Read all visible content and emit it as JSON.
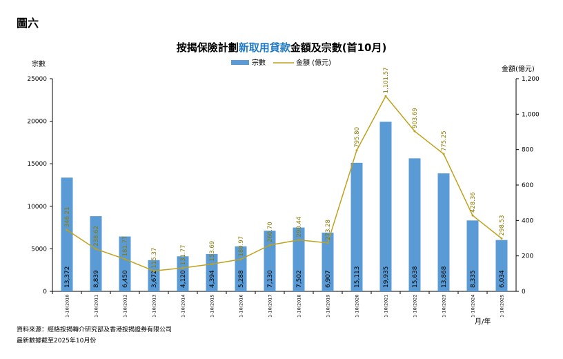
{
  "figure_label": "圖六",
  "footnotes": [
    "資料來源：經絡按揭轉介研究部及香港按揭證券有限公司",
    "最新數據截至2025年10月份"
  ],
  "colors": {
    "bar": "#5b9bd5",
    "line": "#bfa11b",
    "title_highlight": "#1f7ac4"
  },
  "chart_data": {
    "type": "bar",
    "title_parts": [
      {
        "text": "按揭保險計劃",
        "highlight": false
      },
      {
        "text": "新取用貸款",
        "highlight": true
      },
      {
        "text": "金額及宗數(首10月)",
        "highlight": false
      }
    ],
    "ylabel_left": "宗數",
    "ylabel_right": "金額(億元)",
    "xlabel": "月/年",
    "ylim_left": [
      0,
      25000
    ],
    "yticks_left": [
      "0",
      "5000",
      "10000",
      "15000",
      "20000",
      "25000"
    ],
    "ylim_right": [
      0,
      1200
    ],
    "yticks_right": [
      "0",
      "200",
      "400",
      "600",
      "800",
      "1,000",
      "1,200"
    ],
    "legend": {
      "position": "top-center",
      "bar_label": "宗數",
      "line_label": "金額 (億元)"
    },
    "categories": [
      "1-10/2010",
      "1-10/2011",
      "1-10/2012",
      "1-10/2013",
      "1-10/2014",
      "1-10/2015",
      "1-10/2016",
      "1-10/2017",
      "1-10/2018",
      "1-10/2019",
      "1-10/2020",
      "1-10/2021",
      "1-10/2022",
      "1-10/2023",
      "1-10/2024",
      "1-10/2025"
    ],
    "series": [
      {
        "name": "宗數",
        "type": "bar",
        "axis": "left",
        "values": [
          13372,
          8839,
          6450,
          3672,
          4120,
          4394,
          5288,
          7130,
          7502,
          6907,
          15113,
          19935,
          15638,
          13868,
          8335,
          6034
        ],
        "labels": [
          "13,372",
          "8,839",
          "6,450",
          "3,672",
          "4,120",
          "4,394",
          "5,288",
          "7,130",
          "7,502",
          "6,907",
          "15,113",
          "19,935",
          "15,638",
          "13,868",
          "8,335",
          "6,034"
        ]
      },
      {
        "name": "金額 (億元)",
        "type": "line",
        "axis": "right",
        "values": [
          346.21,
          238.62,
          181.77,
          115.37,
          131.77,
          153.69,
          180.97,
          260.7,
          290.44,
          273.28,
          795.8,
          1101.57,
          903.69,
          775.25,
          428.36,
          298.53
        ],
        "labels": [
          "346.21",
          "238.62",
          "181.77",
          "115.37",
          "131.77",
          "153.69",
          "180.97",
          "260.70",
          "290.44",
          "273.28",
          "795.80",
          "1,101.57",
          "903.69",
          "775.25",
          "428.36",
          "298.53"
        ]
      }
    ]
  }
}
